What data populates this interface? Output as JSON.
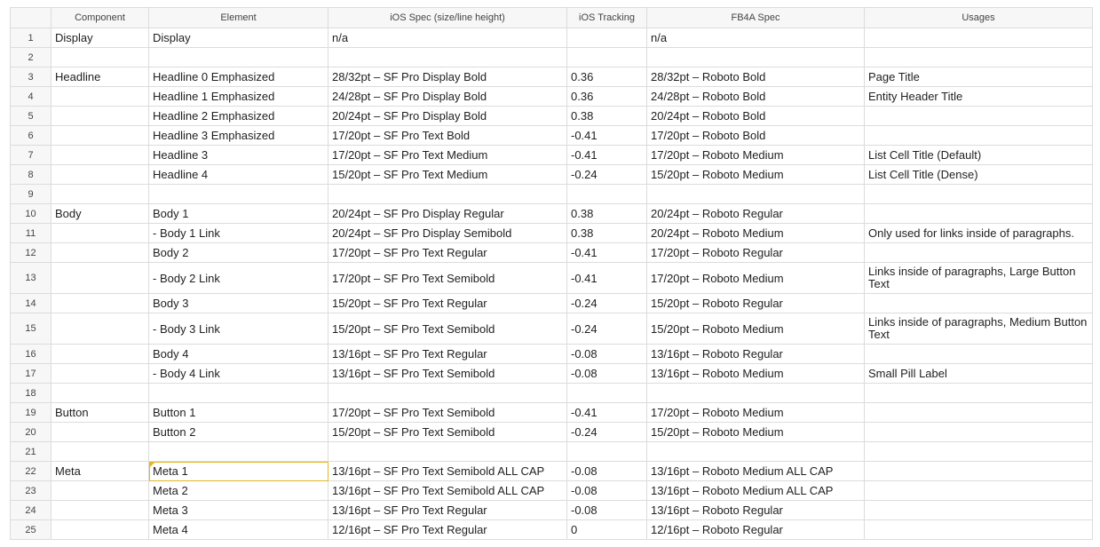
{
  "header": {
    "columns": [
      "Component",
      "Element",
      "iOS Spec (size/line height)",
      "iOS Tracking",
      "FB4A Spec",
      "Usages"
    ]
  },
  "rows": [
    {
      "n": "1",
      "component": "Display",
      "element": "Display",
      "ios_spec": "n/a",
      "ios_tracking": "",
      "fb4a_spec": "n/a",
      "usages": ""
    },
    {
      "n": "2",
      "component": "",
      "element": "",
      "ios_spec": "",
      "ios_tracking": "",
      "fb4a_spec": "",
      "usages": ""
    },
    {
      "n": "3",
      "component": "Headline",
      "element": "Headline 0 Emphasized",
      "ios_spec": "28/32pt – SF Pro Display Bold",
      "ios_tracking": "0.36",
      "fb4a_spec": "28/32pt – Roboto Bold",
      "usages": "Page Title"
    },
    {
      "n": "4",
      "component": "",
      "element": "Headline 1 Emphasized",
      "ios_spec": "24/28pt – SF Pro Display Bold",
      "ios_tracking": "0.36",
      "fb4a_spec": "24/28pt – Roboto Bold",
      "usages": "Entity Header Title"
    },
    {
      "n": "5",
      "component": "",
      "element": "Headline 2 Emphasized",
      "ios_spec": "20/24pt – SF Pro Display Bold",
      "ios_tracking": "0.38",
      "fb4a_spec": "20/24pt – Roboto Bold",
      "usages": ""
    },
    {
      "n": "6",
      "component": "",
      "element": "Headline 3 Emphasized",
      "ios_spec": "17/20pt – SF Pro Text Bold",
      "ios_tracking": "-0.41",
      "fb4a_spec": "17/20pt – Roboto Bold",
      "usages": ""
    },
    {
      "n": "7",
      "component": "",
      "element": "Headline 3",
      "ios_spec": "17/20pt – SF Pro Text Medium",
      "ios_tracking": "-0.41",
      "fb4a_spec": "17/20pt – Roboto Medium",
      "usages": "List Cell Title (Default)"
    },
    {
      "n": "8",
      "component": "",
      "element": "Headline 4",
      "ios_spec": "15/20pt – SF Pro Text Medium",
      "ios_tracking": "-0.24",
      "fb4a_spec": "15/20pt – Roboto Medium",
      "usages": "List Cell Title (Dense)"
    },
    {
      "n": "9",
      "component": "",
      "element": "",
      "ios_spec": "",
      "ios_tracking": "",
      "fb4a_spec": "",
      "usages": ""
    },
    {
      "n": "10",
      "component": "Body",
      "element": "Body 1",
      "ios_spec": "20/24pt – SF Pro Display Regular",
      "ios_tracking": "0.38",
      "fb4a_spec": "20/24pt – Roboto Regular",
      "usages": ""
    },
    {
      "n": "11",
      "component": "",
      "element": "- Body 1 Link",
      "ios_spec": "20/24pt – SF Pro Display Semibold",
      "ios_tracking": "0.38",
      "fb4a_spec": "20/24pt – Roboto Medium",
      "usages": "Only used for links inside of paragraphs."
    },
    {
      "n": "12",
      "component": "",
      "element": "Body 2",
      "ios_spec": "17/20pt – SF Pro Text Regular",
      "ios_tracking": "-0.41",
      "fb4a_spec": "17/20pt – Roboto Regular",
      "usages": ""
    },
    {
      "n": "13",
      "component": "",
      "element": "- Body 2 Link",
      "ios_spec": "17/20pt – SF Pro Text Semibold",
      "ios_tracking": "-0.41",
      "fb4a_spec": "17/20pt – Roboto Medium",
      "usages": "Links inside of paragraphs, Large Button Text",
      "tall": true
    },
    {
      "n": "14",
      "component": "",
      "element": "Body 3",
      "ios_spec": "15/20pt – SF Pro Text Regular",
      "ios_tracking": "-0.24",
      "fb4a_spec": "15/20pt – Roboto Regular",
      "usages": ""
    },
    {
      "n": "15",
      "component": "",
      "element": "- Body 3 Link",
      "ios_spec": "15/20pt – SF Pro Text Semibold",
      "ios_tracking": "-0.24",
      "fb4a_spec": "15/20pt – Roboto Medium",
      "usages": "Links inside of paragraphs, Medium Button Text",
      "tall": true
    },
    {
      "n": "16",
      "component": "",
      "element": "Body 4",
      "ios_spec": "13/16pt – SF Pro Text Regular",
      "ios_tracking": "-0.08",
      "fb4a_spec": "13/16pt – Roboto Regular",
      "usages": ""
    },
    {
      "n": "17",
      "component": "",
      "element": "- Body 4 Link",
      "ios_spec": "13/16pt – SF Pro Text Semibold",
      "ios_tracking": "-0.08",
      "fb4a_spec": "13/16pt – Roboto Medium",
      "usages": "Small Pill Label"
    },
    {
      "n": "18",
      "component": "",
      "element": "",
      "ios_spec": "",
      "ios_tracking": "",
      "fb4a_spec": "",
      "usages": ""
    },
    {
      "n": "19",
      "component": "Button",
      "element": "Button 1",
      "ios_spec": "17/20pt – SF Pro Text Semibold",
      "ios_tracking": "-0.41",
      "fb4a_spec": "17/20pt – Roboto Medium",
      "usages": ""
    },
    {
      "n": "20",
      "component": "",
      "element": "Button 2",
      "ios_spec": "15/20pt – SF Pro Text Semibold",
      "ios_tracking": "-0.24",
      "fb4a_spec": "15/20pt – Roboto Medium",
      "usages": ""
    },
    {
      "n": "21",
      "component": "",
      "element": "",
      "ios_spec": "",
      "ios_tracking": "",
      "fb4a_spec": "",
      "usages": ""
    },
    {
      "n": "22",
      "component": "Meta",
      "element": "Meta 1",
      "ios_spec": "13/16pt – SF Pro Text Semibold ALL CAP",
      "ios_tracking": "-0.08",
      "fb4a_spec": "13/16pt – Roboto Medium ALL CAP",
      "usages": "",
      "selected_element": true
    },
    {
      "n": "23",
      "component": "",
      "element": "Meta 2",
      "ios_spec": "13/16pt – SF Pro Text Semibold ALL CAP",
      "ios_tracking": "-0.08",
      "fb4a_spec": "13/16pt – Roboto Medium ALL CAP",
      "usages": ""
    },
    {
      "n": "24",
      "component": "",
      "element": "Meta 3",
      "ios_spec": "13/16pt – SF Pro Text Regular",
      "ios_tracking": "-0.08",
      "fb4a_spec": "13/16pt – Roboto Regular",
      "usages": ""
    },
    {
      "n": "25",
      "component": "",
      "element": "Meta 4",
      "ios_spec": "12/16pt – SF Pro Text Regular",
      "ios_tracking": "0",
      "fb4a_spec": "12/16pt – Roboto Regular",
      "usages": ""
    }
  ],
  "colors": {
    "grid": "#dcdcdc",
    "header_bg": "#f7f7f7",
    "selection": "#e2b624"
  }
}
